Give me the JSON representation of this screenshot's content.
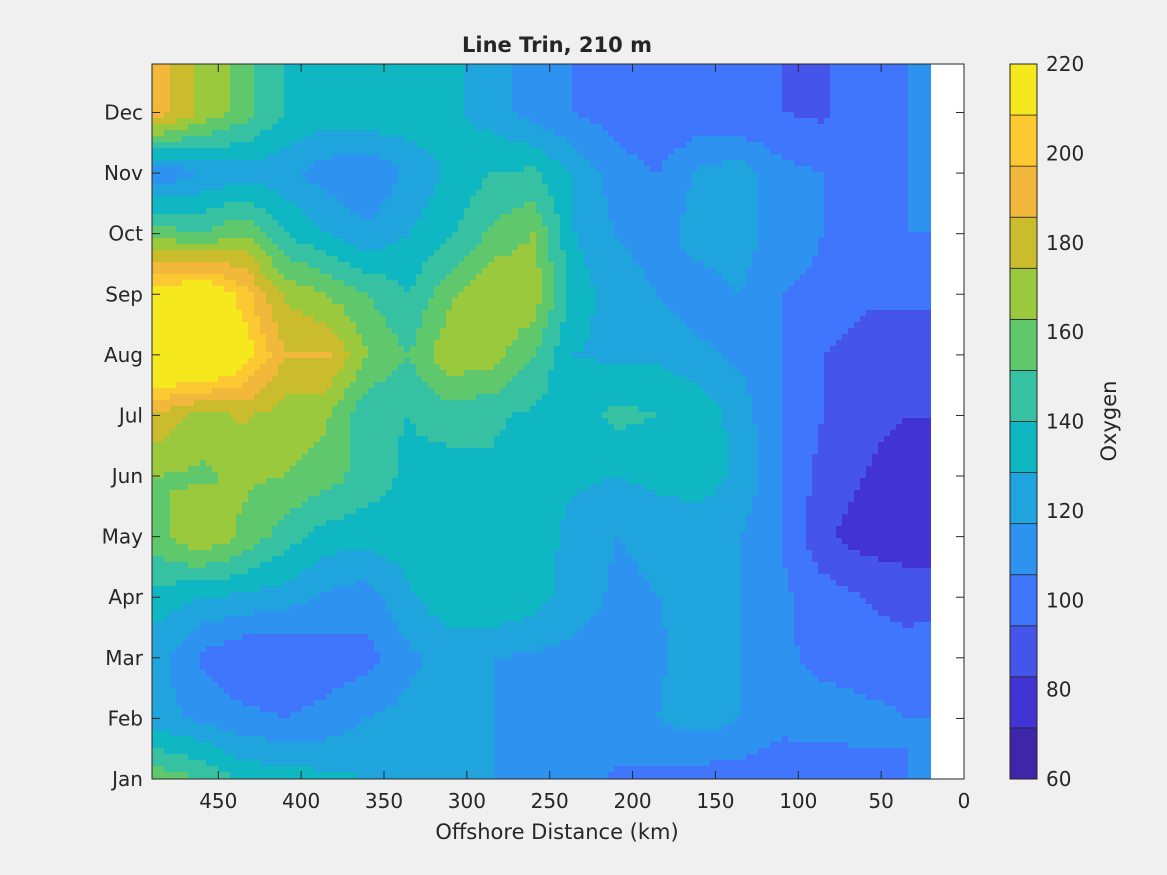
{
  "chart_data": {
    "type": "heatmap",
    "plot_style": "filled contour",
    "title": "Line Trin, 210 m",
    "xlabel": "Offshore Distance (km)",
    "ylabel": "",
    "x_direction": "reversed",
    "xlim": [
      0,
      490
    ],
    "x_ticks": [
      450,
      400,
      350,
      300,
      250,
      200,
      150,
      100,
      50,
      0
    ],
    "y_ticks": [
      "Jan",
      "Feb",
      "Mar",
      "Apr",
      "May",
      "Jun",
      "Jul",
      "Aug",
      "Sep",
      "Oct",
      "Nov",
      "Dec"
    ],
    "colorbar": {
      "label": "Oxygen",
      "range": [
        60,
        220
      ],
      "ticks": [
        60,
        80,
        100,
        120,
        140,
        160,
        180,
        200,
        220
      ],
      "level_step": 10,
      "colors": [
        "#3e26a8",
        "#4233d4",
        "#4555ec",
        "#3f76fc",
        "#2e92f0",
        "#20a4de",
        "#0fb7c2",
        "#36c1a2",
        "#5fc86d",
        "#9ac93d",
        "#cabc2c",
        "#f1b83c",
        "#fdc933",
        "#f5e81d"
      ]
    },
    "data_gap": "no data between 0 and ~20 km offshore",
    "x_km": [
      485,
      460,
      435,
      410,
      385,
      360,
      335,
      310,
      285,
      260,
      235,
      210,
      185,
      160,
      135,
      110,
      85,
      60,
      35,
      20
    ],
    "months": [
      "Jan",
      "Feb",
      "Mar",
      "Apr",
      "May",
      "Jun",
      "Jul",
      "Aug",
      "Sep",
      "Oct",
      "Nov",
      "Dec"
    ],
    "oxygen": [
      [
        146,
        140,
        128,
        125,
        123,
        120,
        118,
        115,
        110,
        106,
        104,
        98,
        97,
        95,
        95,
        90,
        92,
        97,
        100,
        100
      ],
      [
        113,
        108,
        103,
        100,
        103,
        110,
        113,
        115,
        110,
        108,
        105,
        108,
        110,
        115,
        110,
        105,
        105,
        103,
        100,
        100
      ],
      [
        113,
        98,
        90,
        90,
        95,
        96,
        108,
        113,
        110,
        108,
        107,
        105,
        108,
        117,
        110,
        102,
        97,
        95,
        95,
        98
      ],
      [
        125,
        120,
        118,
        115,
        108,
        105,
        118,
        128,
        130,
        125,
        115,
        108,
        110,
        112,
        110,
        102,
        95,
        90,
        85,
        85
      ],
      [
        148,
        160,
        148,
        135,
        125,
        124,
        126,
        130,
        130,
        126,
        116,
        110,
        112,
        115,
        110,
        100,
        82,
        75,
        75,
        75
      ],
      [
        150,
        148,
        152,
        150,
        145,
        135,
        128,
        125,
        128,
        124,
        122,
        120,
        123,
        125,
        118,
        100,
        86,
        80,
        75,
        75
      ],
      [
        168,
        155,
        162,
        155,
        152,
        132,
        130,
        135,
        132,
        128,
        125,
        133,
        130,
        128,
        115,
        100,
        90,
        83,
        80,
        80
      ],
      [
        215,
        220,
        198,
        170,
        172,
        150,
        140,
        158,
        155,
        140,
        120,
        118,
        118,
        112,
        108,
        100,
        90,
        85,
        85,
        85
      ],
      [
        195,
        205,
        185,
        158,
        150,
        140,
        130,
        148,
        160,
        158,
        125,
        115,
        110,
        105,
        110,
        100,
        98,
        92,
        92,
        92
      ],
      [
        145,
        140,
        150,
        130,
        120,
        112,
        120,
        128,
        142,
        150,
        120,
        110,
        105,
        115,
        115,
        105,
        100,
        100,
        100,
        100
      ],
      [
        102,
        110,
        115,
        113,
        105,
        100,
        112,
        122,
        130,
        132,
        118,
        105,
        100,
        112,
        115,
        103,
        100,
        98,
        100,
        100
      ],
      [
        175,
        158,
        145,
        130,
        125,
        128,
        128,
        122,
        115,
        105,
        100,
        95,
        90,
        92,
        90,
        90,
        88,
        98,
        100,
        100
      ]
    ]
  }
}
